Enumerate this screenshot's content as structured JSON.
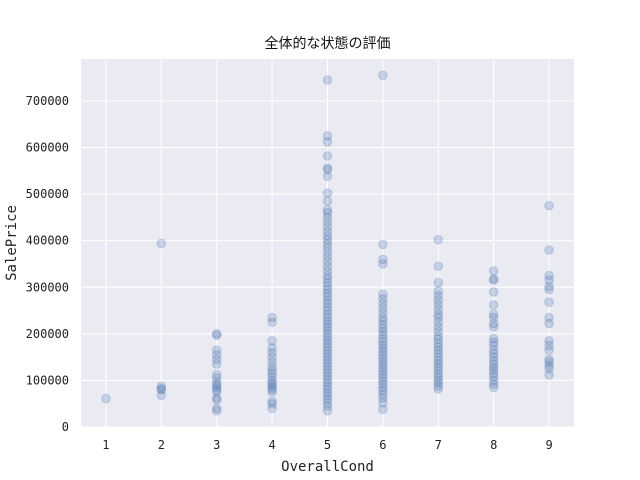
{
  "chart_data": {
    "type": "scatter",
    "title": "全体的な状態の評価",
    "xlabel": "OverallCond",
    "ylabel": "SalePrice",
    "xlim": [
      0.55,
      9.45
    ],
    "ylim": [
      0,
      790000
    ],
    "xticks": [
      1,
      2,
      3,
      4,
      5,
      6,
      7,
      8,
      9
    ],
    "yticks": [
      0,
      100000,
      200000,
      300000,
      400000,
      500000,
      600000,
      700000
    ],
    "ytick_labels": [
      "0",
      "100000",
      "200000",
      "300000",
      "400000",
      "500000",
      "600000",
      "700000"
    ],
    "grid": true,
    "marker_alpha": 0.25,
    "colors": {
      "background": "#eaeaf2",
      "grid": "#ffffff",
      "marker": "#4c72b0"
    },
    "points": [
      [
        1,
        61000
      ],
      [
        2,
        394000
      ],
      [
        2,
        87000
      ],
      [
        2,
        82000
      ],
      [
        2,
        80000
      ],
      [
        2,
        68000
      ],
      [
        3,
        200000
      ],
      [
        3,
        197000
      ],
      [
        3,
        165000
      ],
      [
        3,
        155000
      ],
      [
        3,
        145000
      ],
      [
        3,
        135000
      ],
      [
        3,
        112000
      ],
      [
        3,
        105000
      ],
      [
        3,
        95000
      ],
      [
        3,
        90000
      ],
      [
        3,
        85000
      ],
      [
        3,
        80000
      ],
      [
        3,
        75000
      ],
      [
        3,
        62000
      ],
      [
        3,
        58000
      ],
      [
        3,
        40000
      ],
      [
        3,
        35000
      ],
      [
        4,
        235000
      ],
      [
        4,
        225000
      ],
      [
        4,
        185000
      ],
      [
        4,
        170000
      ],
      [
        4,
        160000
      ],
      [
        4,
        150000
      ],
      [
        4,
        140000
      ],
      [
        4,
        130000
      ],
      [
        4,
        122000
      ],
      [
        4,
        115000
      ],
      [
        4,
        108000
      ],
      [
        4,
        100000
      ],
      [
        4,
        95000
      ],
      [
        4,
        90000
      ],
      [
        4,
        85000
      ],
      [
        4,
        80000
      ],
      [
        4,
        75000
      ],
      [
        4,
        55000
      ],
      [
        4,
        50000
      ],
      [
        4,
        40000
      ],
      [
        5,
        745000
      ],
      [
        5,
        625000
      ],
      [
        5,
        612000
      ],
      [
        5,
        582000
      ],
      [
        5,
        556000
      ],
      [
        5,
        552000
      ],
      [
        5,
        538000
      ],
      [
        5,
        502000
      ],
      [
        5,
        485000
      ],
      [
        5,
        466000
      ],
      [
        5,
        460000
      ],
      [
        5,
        450000
      ],
      [
        5,
        440000
      ],
      [
        5,
        430000
      ],
      [
        5,
        420000
      ],
      [
        5,
        410000
      ],
      [
        5,
        402000
      ],
      [
        5,
        394000
      ],
      [
        5,
        385000
      ],
      [
        5,
        375000
      ],
      [
        5,
        365000
      ],
      [
        5,
        355000
      ],
      [
        5,
        345000
      ],
      [
        5,
        335000
      ],
      [
        5,
        325000
      ],
      [
        5,
        318000
      ],
      [
        5,
        310000
      ],
      [
        5,
        302000
      ],
      [
        5,
        295000
      ],
      [
        5,
        287000
      ],
      [
        5,
        280000
      ],
      [
        5,
        272000
      ],
      [
        5,
        265000
      ],
      [
        5,
        257000
      ],
      [
        5,
        250000
      ],
      [
        5,
        242000
      ],
      [
        5,
        235000
      ],
      [
        5,
        228000
      ],
      [
        5,
        221000
      ],
      [
        5,
        214000
      ],
      [
        5,
        207000
      ],
      [
        5,
        200000
      ],
      [
        5,
        193000
      ],
      [
        5,
        186000
      ],
      [
        5,
        179000
      ],
      [
        5,
        172000
      ],
      [
        5,
        165000
      ],
      [
        5,
        158000
      ],
      [
        5,
        151000
      ],
      [
        5,
        144000
      ],
      [
        5,
        137000
      ],
      [
        5,
        130000
      ],
      [
        5,
        123000
      ],
      [
        5,
        116000
      ],
      [
        5,
        109000
      ],
      [
        5,
        102000
      ],
      [
        5,
        95000
      ],
      [
        5,
        88000
      ],
      [
        5,
        81000
      ],
      [
        5,
        74000
      ],
      [
        5,
        67000
      ],
      [
        5,
        60000
      ],
      [
        5,
        52000
      ],
      [
        5,
        45000
      ],
      [
        5,
        35000
      ],
      [
        6,
        755000
      ],
      [
        6,
        392000
      ],
      [
        6,
        360000
      ],
      [
        6,
        350000
      ],
      [
        6,
        285000
      ],
      [
        6,
        275000
      ],
      [
        6,
        265000
      ],
      [
        6,
        255000
      ],
      [
        6,
        245000
      ],
      [
        6,
        235000
      ],
      [
        6,
        228000
      ],
      [
        6,
        220000
      ],
      [
        6,
        212000
      ],
      [
        6,
        205000
      ],
      [
        6,
        198000
      ],
      [
        6,
        190000
      ],
      [
        6,
        183000
      ],
      [
        6,
        176000
      ],
      [
        6,
        169000
      ],
      [
        6,
        162000
      ],
      [
        6,
        155000
      ],
      [
        6,
        148000
      ],
      [
        6,
        141000
      ],
      [
        6,
        134000
      ],
      [
        6,
        127000
      ],
      [
        6,
        120000
      ],
      [
        6,
        113000
      ],
      [
        6,
        106000
      ],
      [
        6,
        99000
      ],
      [
        6,
        92000
      ],
      [
        6,
        85000
      ],
      [
        6,
        78000
      ],
      [
        6,
        70000
      ],
      [
        6,
        62000
      ],
      [
        6,
        52000
      ],
      [
        6,
        38000
      ],
      [
        7,
        402000
      ],
      [
        7,
        345000
      ],
      [
        7,
        310000
      ],
      [
        7,
        292000
      ],
      [
        7,
        282000
      ],
      [
        7,
        272000
      ],
      [
        7,
        262000
      ],
      [
        7,
        252000
      ],
      [
        7,
        242000
      ],
      [
        7,
        235000
      ],
      [
        7,
        225000
      ],
      [
        7,
        215000
      ],
      [
        7,
        205000
      ],
      [
        7,
        195000
      ],
      [
        7,
        188000
      ],
      [
        7,
        180000
      ],
      [
        7,
        172000
      ],
      [
        7,
        165000
      ],
      [
        7,
        158000
      ],
      [
        7,
        150000
      ],
      [
        7,
        143000
      ],
      [
        7,
        136000
      ],
      [
        7,
        129000
      ],
      [
        7,
        122000
      ],
      [
        7,
        115000
      ],
      [
        7,
        108000
      ],
      [
        7,
        101000
      ],
      [
        7,
        95000
      ],
      [
        7,
        88000
      ],
      [
        7,
        82000
      ],
      [
        8,
        335000
      ],
      [
        8,
        318000
      ],
      [
        8,
        315000
      ],
      [
        8,
        290000
      ],
      [
        8,
        262000
      ],
      [
        8,
        242000
      ],
      [
        8,
        235000
      ],
      [
        8,
        222000
      ],
      [
        8,
        215000
      ],
      [
        8,
        190000
      ],
      [
        8,
        182000
      ],
      [
        8,
        175000
      ],
      [
        8,
        165000
      ],
      [
        8,
        158000
      ],
      [
        8,
        150000
      ],
      [
        8,
        142000
      ],
      [
        8,
        135000
      ],
      [
        8,
        128000
      ],
      [
        8,
        122000
      ],
      [
        8,
        115000
      ],
      [
        8,
        108000
      ],
      [
        8,
        100000
      ],
      [
        8,
        92000
      ],
      [
        8,
        85000
      ],
      [
        9,
        475000
      ],
      [
        9,
        380000
      ],
      [
        9,
        325000
      ],
      [
        9,
        315000
      ],
      [
        9,
        302000
      ],
      [
        9,
        295000
      ],
      [
        9,
        268000
      ],
      [
        9,
        235000
      ],
      [
        9,
        222000
      ],
      [
        9,
        185000
      ],
      [
        9,
        175000
      ],
      [
        9,
        165000
      ],
      [
        9,
        145000
      ],
      [
        9,
        140000
      ],
      [
        9,
        132000
      ],
      [
        9,
        125000
      ],
      [
        9,
        112000
      ]
    ]
  }
}
